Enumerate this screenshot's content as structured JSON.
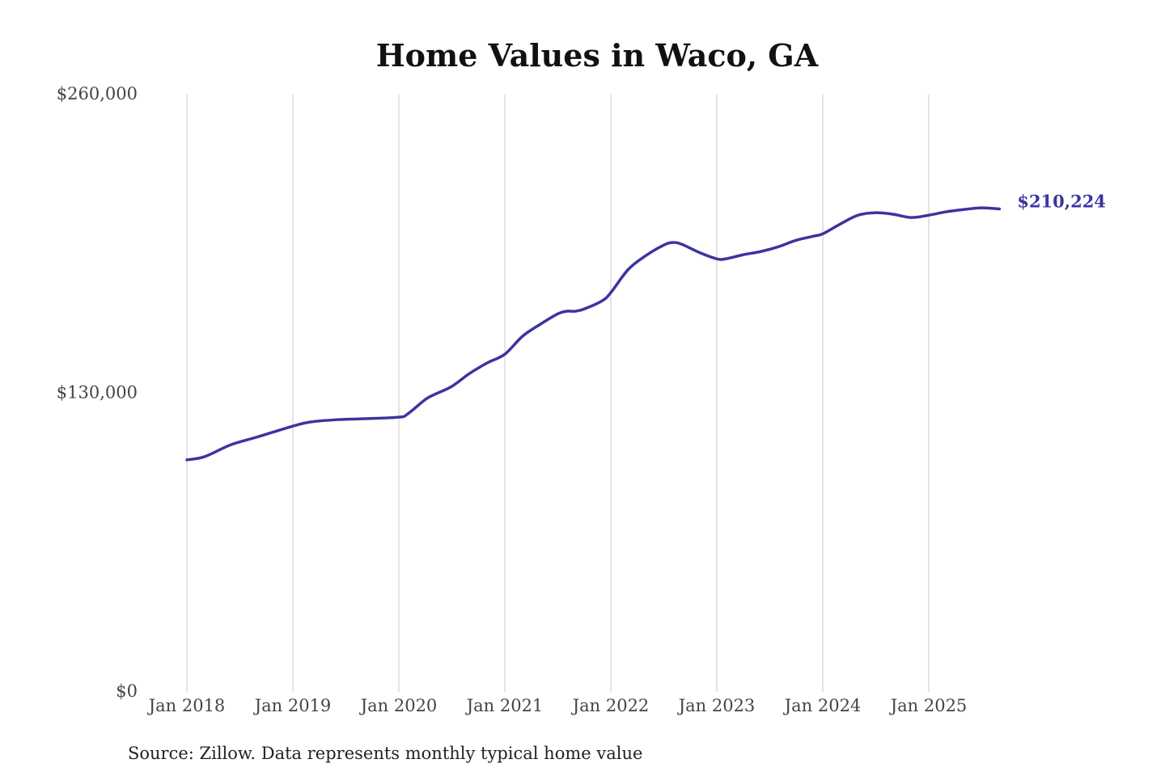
{
  "chart_data": {
    "type": "line",
    "title": "Home Values in Waco, GA",
    "xlabel": "",
    "ylabel": "",
    "source": "Source: Zillow. Data represents monthly typical home value",
    "ylim": [
      0,
      260000
    ],
    "y_ticks": [
      0,
      130000,
      260000
    ],
    "y_tick_labels": [
      "$0",
      "$130,000",
      "$260,000"
    ],
    "x_ticks": [
      "2018-01",
      "2019-01",
      "2020-01",
      "2021-01",
      "2022-01",
      "2023-01",
      "2024-01",
      "2025-01"
    ],
    "x_tick_labels": [
      "Jan 2018",
      "Jan 2019",
      "Jan 2020",
      "Jan 2021",
      "Jan 2022",
      "Jan 2023",
      "Jan 2024",
      "Jan 2025"
    ],
    "grid": "vertical",
    "line_color": "#3b34a0",
    "end_label": "$210,224",
    "series": [
      {
        "x": [
          "2018-01",
          "2018-03",
          "2018-06",
          "2018-09",
          "2019-01",
          "2019-03",
          "2019-06",
          "2019-09",
          "2020-01",
          "2020-02",
          "2020-04",
          "2020-05",
          "2020-07",
          "2020-09",
          "2020-11",
          "2021-01",
          "2021-03",
          "2021-05",
          "2021-07",
          "2021-08",
          "2021-09",
          "2021-10",
          "2021-12",
          "2022-01",
          "2022-03",
          "2022-05",
          "2022-07",
          "2022-08",
          "2022-09",
          "2022-11",
          "2023-01",
          "2023-02",
          "2023-04",
          "2023-06",
          "2023-08",
          "2023-10",
          "2023-12",
          "2024-01",
          "2024-03",
          "2024-05",
          "2024-07",
          "2024-09",
          "2024-11",
          "2025-01",
          "2025-03",
          "2025-05",
          "2025-07",
          "2025-09"
        ],
        "values": [
          101000,
          102400,
          107600,
          111000,
          115700,
          117500,
          118500,
          118900,
          119600,
          121000,
          127300,
          129400,
          133000,
          138600,
          143200,
          147000,
          154800,
          160000,
          164600,
          165700,
          165700,
          166700,
          170200,
          173800,
          184000,
          190000,
          194500,
          195600,
          194900,
          191300,
          188500,
          188500,
          190300,
          191700,
          193800,
          196600,
          198400,
          199400,
          203700,
          207500,
          208600,
          207900,
          206500,
          207500,
          209000,
          210000,
          210700,
          210224
        ]
      }
    ]
  }
}
